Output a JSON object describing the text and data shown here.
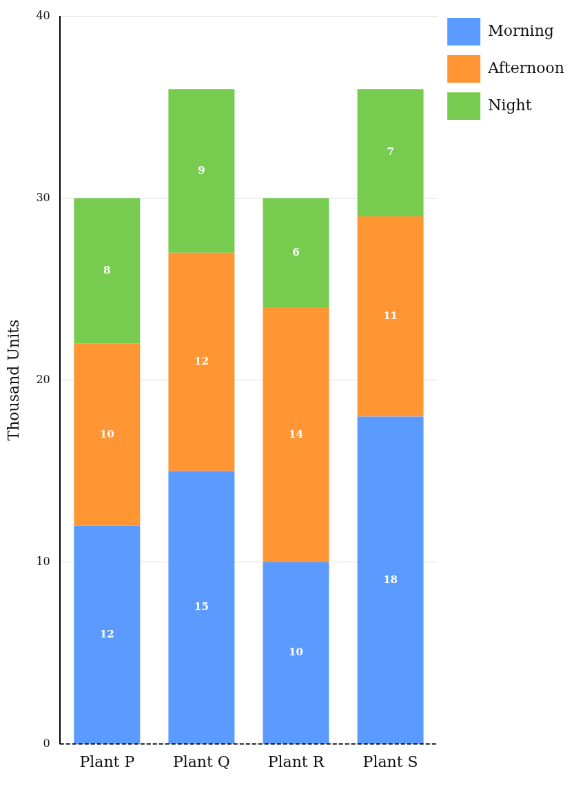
{
  "chart_data": {
    "type": "bar",
    "stacked": true,
    "ylabel": "Thousand Units",
    "categories": [
      "Plant P",
      "Plant Q",
      "Plant R",
      "Plant S"
    ],
    "series": [
      {
        "name": "Morning",
        "color": "#5b9bff",
        "values": [
          12,
          15,
          10,
          18
        ]
      },
      {
        "name": "Afternoon",
        "color": "#ff9633",
        "values": [
          10,
          12,
          14,
          11
        ]
      },
      {
        "name": "Night",
        "color": "#77cc50",
        "values": [
          8,
          9,
          6,
          7
        ]
      }
    ],
    "ylim": [
      0,
      40
    ],
    "yticks": [
      0,
      10,
      20,
      30,
      40
    ],
    "grid": "y",
    "legend": "top right",
    "data_labels": true
  }
}
